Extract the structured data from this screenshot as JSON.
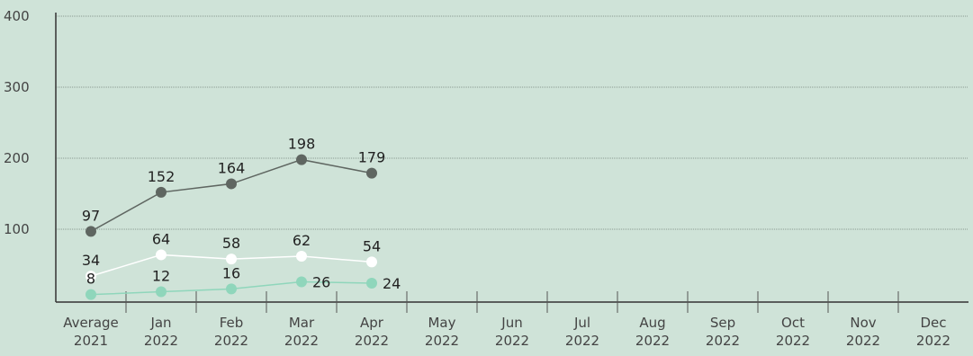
{
  "chart_data": {
    "type": "line",
    "categories": [
      "Average 2021",
      "Jan 2022",
      "Feb 2022",
      "Mar 2022",
      "Apr 2022",
      "May 2022",
      "Jun 2022",
      "Jul 2022",
      "Aug 2022",
      "Sep 2022",
      "Oct 2022",
      "Nov 2022",
      "Dec 2022"
    ],
    "series": [
      {
        "color": "#5f6661",
        "values": [
          97,
          152,
          164,
          198,
          179,
          null,
          null,
          null,
          null,
          null,
          null,
          null,
          null
        ]
      },
      {
        "color": "#ffffff",
        "values": [
          34,
          64,
          58,
          62,
          54,
          null,
          null,
          null,
          null,
          null,
          null,
          null,
          null
        ]
      },
      {
        "color": "#8fd6bb",
        "values": [
          8,
          12,
          16,
          26,
          24,
          null,
          null,
          null,
          null,
          null,
          null,
          null,
          null
        ]
      }
    ],
    "ylim": [
      0,
      400
    ],
    "yticks": [
      100,
      200,
      300,
      400
    ],
    "grid": true
  }
}
